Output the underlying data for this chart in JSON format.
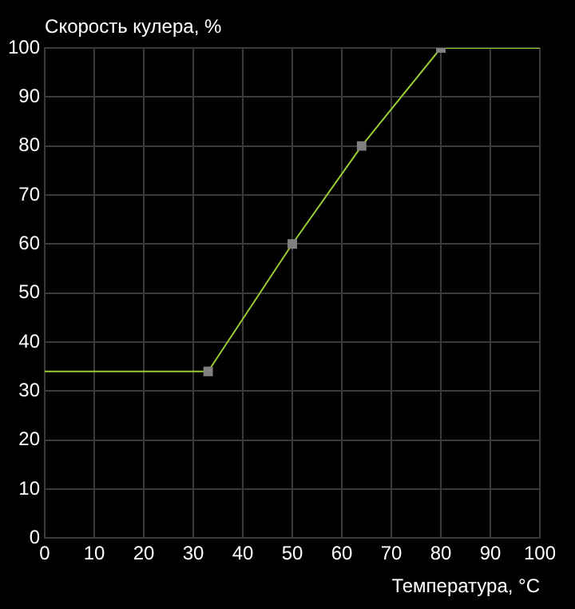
{
  "chart_data": {
    "type": "line",
    "ylabel": "Скорость кулера, %",
    "xlabel": "Температура, °C",
    "xlim": [
      0,
      100
    ],
    "xticks": [
      0,
      10,
      20,
      30,
      40,
      50,
      60,
      70,
      80,
      90,
      100
    ],
    "ylim": [
      0,
      100
    ],
    "yticks": [
      0,
      10,
      20,
      30,
      40,
      50,
      60,
      70,
      80,
      90,
      100
    ],
    "grid": true,
    "legend": false,
    "series": [
      {
        "type": "line",
        "color": "#9acd32",
        "marker": "none",
        "x": [
          0,
          33,
          50,
          64,
          80,
          100
        ],
        "values": [
          34,
          34,
          60,
          80,
          100,
          100
        ]
      },
      {
        "type": "scatter",
        "color": "#808080",
        "marker": "square",
        "x": [
          33,
          50,
          64,
          80
        ],
        "values": [
          34,
          60,
          80,
          100
        ]
      }
    ]
  }
}
